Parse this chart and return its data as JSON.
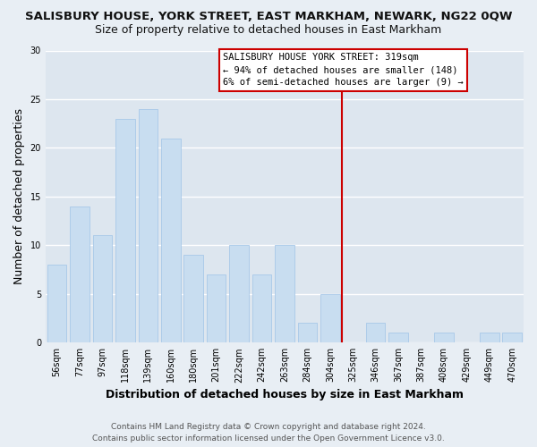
{
  "title": "SALISBURY HOUSE, YORK STREET, EAST MARKHAM, NEWARK, NG22 0QW",
  "subtitle": "Size of property relative to detached houses in East Markham",
  "xlabel": "Distribution of detached houses by size in East Markham",
  "ylabel": "Number of detached properties",
  "bar_labels": [
    "56sqm",
    "77sqm",
    "97sqm",
    "118sqm",
    "139sqm",
    "160sqm",
    "180sqm",
    "201sqm",
    "222sqm",
    "242sqm",
    "263sqm",
    "284sqm",
    "304sqm",
    "325sqm",
    "346sqm",
    "367sqm",
    "387sqm",
    "408sqm",
    "429sqm",
    "449sqm",
    "470sqm"
  ],
  "bar_values": [
    8,
    14,
    11,
    23,
    24,
    21,
    9,
    7,
    10,
    7,
    10,
    2,
    5,
    0,
    2,
    1,
    0,
    1,
    0,
    1,
    1
  ],
  "bar_color": "#c8ddf0",
  "bar_edge_color": "#a8c8e8",
  "ylim": [
    0,
    30
  ],
  "yticks": [
    0,
    5,
    10,
    15,
    20,
    25,
    30
  ],
  "reference_line_x_label": "325sqm",
  "reference_line_color": "#cc0000",
  "annotation_box_title": "SALISBURY HOUSE YORK STREET: 319sqm",
  "annotation_line1": "← 94% of detached houses are smaller (148)",
  "annotation_line2": "6% of semi-detached houses are larger (9) →",
  "annotation_box_color": "#ffffff",
  "annotation_box_edge": "#cc0000",
  "footer_line1": "Contains HM Land Registry data © Crown copyright and database right 2024.",
  "footer_line2": "Contains public sector information licensed under the Open Government Licence v3.0.",
  "background_color": "#e8eef4",
  "plot_bg_color": "#dde6ef",
  "grid_color": "#ffffff",
  "title_fontsize": 9.5,
  "subtitle_fontsize": 9,
  "axis_label_fontsize": 9,
  "tick_fontsize": 7,
  "footer_fontsize": 6.5,
  "annotation_fontsize": 7.5
}
